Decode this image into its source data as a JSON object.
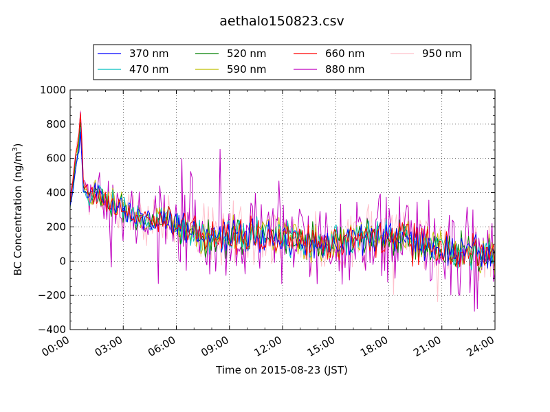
{
  "chart_data": {
    "type": "line",
    "title": "aethalo150823.csv",
    "xlabel": "Time on 2015-08-23 (JST)",
    "ylabel": "BC Concentration (ng/m",
    "ylabel_superscript": "3",
    "ylabel_close": ")",
    "xlim": [
      "00:00",
      "24:00"
    ],
    "ylim": [
      -400,
      1000
    ],
    "grid": true,
    "legend_position": "top-center",
    "x_ticks": [
      "00:00",
      "03:00",
      "06:00",
      "09:00",
      "12:00",
      "15:00",
      "18:00",
      "21:00",
      "24:00"
    ],
    "y_ticks": [
      "1000",
      "800",
      "600",
      "400",
      "200",
      "0",
      "−200",
      "−400"
    ],
    "y_tick_values": [
      1000,
      800,
      600,
      400,
      200,
      0,
      -200,
      -400
    ],
    "series": [
      {
        "name": "370 nm",
        "color": "#0000ff"
      },
      {
        "name": "470 nm",
        "color": "#00bfbf"
      },
      {
        "name": "520 nm",
        "color": "#008000"
      },
      {
        "name": "590 nm",
        "color": "#bfbf00"
      },
      {
        "name": "660 nm",
        "color": "#ff0000"
      },
      {
        "name": "880 nm",
        "color": "#bf00bf"
      },
      {
        "name": "950 nm",
        "color": "#ffc0cb"
      }
    ],
    "trend_x_hours": [
      0,
      0.17,
      0.33,
      0.5,
      0.6,
      0.75,
      1,
      1.5,
      2,
      2.5,
      3,
      3.5,
      4,
      4.5,
      5,
      5.5,
      6,
      6.5,
      7,
      8,
      9,
      10,
      11,
      12,
      13,
      14,
      15,
      16,
      17,
      18,
      19,
      20,
      21,
      22,
      23,
      24
    ],
    "trend_y": [
      330,
      450,
      600,
      680,
      820,
      420,
      390,
      380,
      360,
      340,
      300,
      270,
      230,
      230,
      240,
      250,
      200,
      170,
      150,
      130,
      140,
      150,
      140,
      130,
      120,
      110,
      120,
      130,
      140,
      140,
      120,
      100,
      80,
      60,
      50,
      40
    ]
  }
}
